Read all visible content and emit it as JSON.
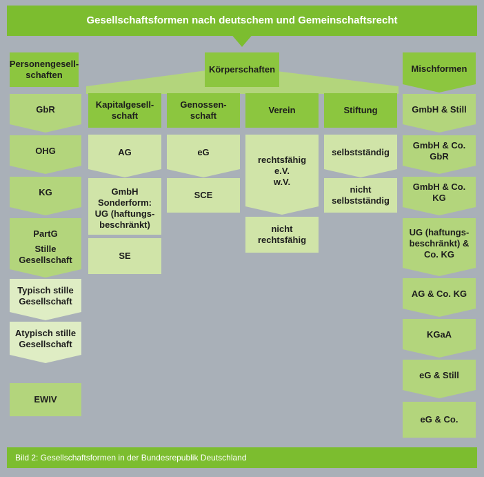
{
  "title": "Gesellschaftsformen nach deutschem und Gemeinschaftsrecht",
  "categories": {
    "personen": "Personengesell-\nschaften",
    "koerper": "Körperschaften",
    "misch": "Mischformen"
  },
  "personen_items": [
    "GbR",
    "OHG",
    "KG",
    "PartG",
    "Stille\nGesellschaft",
    "Typisch stille\nGesellschaft",
    "Atypisch stille\nGesellschaft",
    "EWIV"
  ],
  "koerper_groups": {
    "kapital": {
      "label": "Kapitalgesell-\nschaft",
      "items": [
        "AG",
        "GmbH\nSonderform:\nUG (haftungs-\nbeschränkt)",
        "SE"
      ]
    },
    "genossen": {
      "label": "Genossen-\nschaft",
      "items": [
        "eG",
        "SCE"
      ]
    },
    "verein": {
      "label": "Verein",
      "items": [
        "rechtsfähig\ne.V.\nw.V.",
        "nicht\nrechtsfähig"
      ]
    },
    "stiftung": {
      "label": "Stiftung",
      "items": [
        "selbstständig",
        "nicht\nselbstständig"
      ]
    }
  },
  "misch_items": [
    "GmbH & Still",
    "GmbH & Co. GbR",
    "GmbH & Co. KG",
    "UG (haftungs-\nbeschränkt) &\nCo. KG",
    "AG & Co. KG",
    "KGaA",
    "eG & Still",
    "eG & Co."
  ],
  "caption": "Bild 2: Gesellschaftsformen in der Bundesrepublik Deutschland",
  "colors": {
    "background": "#a9b0b8",
    "title_green": "#7cbd2f",
    "category_green": "#8cc63f",
    "level_mid": "#b3d57c",
    "level_light": "#d0e4a8",
    "level_pale": "#dfedc4"
  }
}
